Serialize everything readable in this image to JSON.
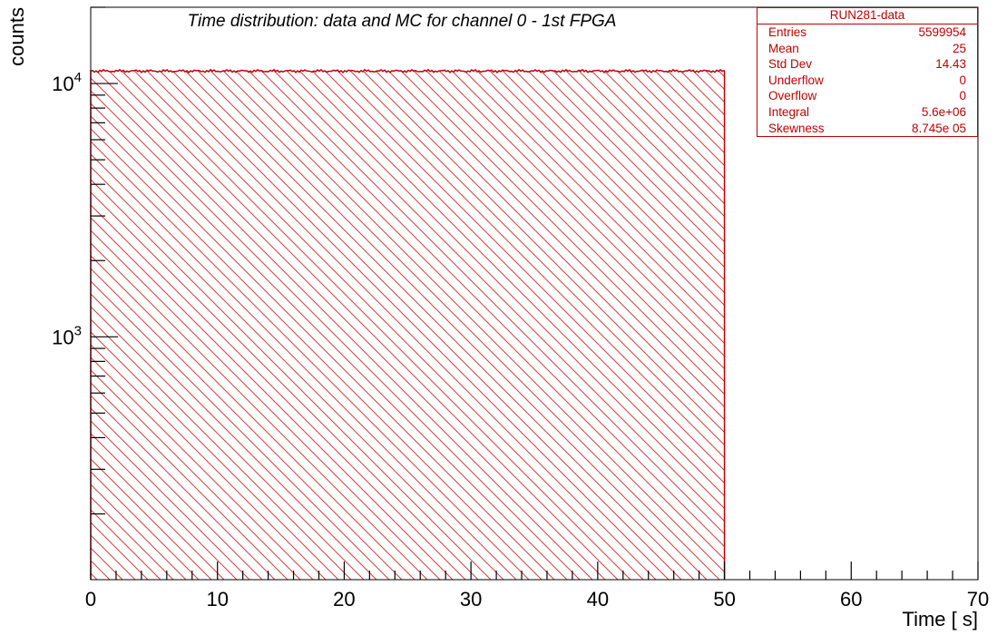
{
  "chart_data": {
    "type": "bar",
    "title": "Time distribution: data and MC for channel 0 - 1st FPGA",
    "xlabel": "Time [  s]",
    "ylabel": "counts",
    "xlim": [
      0,
      70
    ],
    "ylim": [
      110,
      20000
    ],
    "y_scale": "log",
    "x_tick_labels": [
      "0",
      "10",
      "20",
      "30",
      "40",
      "50",
      "60",
      "70"
    ],
    "y_tick_labels": [
      {
        "base": "10",
        "exp": "3",
        "value": 1000
      },
      {
        "base": "10",
        "exp": "4",
        "value": 10000
      }
    ],
    "series": [
      {
        "name": "RUN281-data",
        "x_range": [
          0,
          50
        ],
        "level": 11200,
        "fill": "hatched"
      }
    ],
    "grid": false,
    "color": "#c00000"
  },
  "stats_box": {
    "title": "RUN281-data",
    "rows": [
      {
        "label": "Entries",
        "value": "5599954"
      },
      {
        "label": "Mean",
        "value": "25"
      },
      {
        "label": "Std Dev",
        "value": "14.43"
      },
      {
        "label": "Underflow",
        "value": "0"
      },
      {
        "label": "Overflow",
        "value": "0"
      },
      {
        "label": "Integral",
        "value": "5.6e+06"
      },
      {
        "label": "Skewness",
        "value": "8.745e  05"
      }
    ]
  }
}
